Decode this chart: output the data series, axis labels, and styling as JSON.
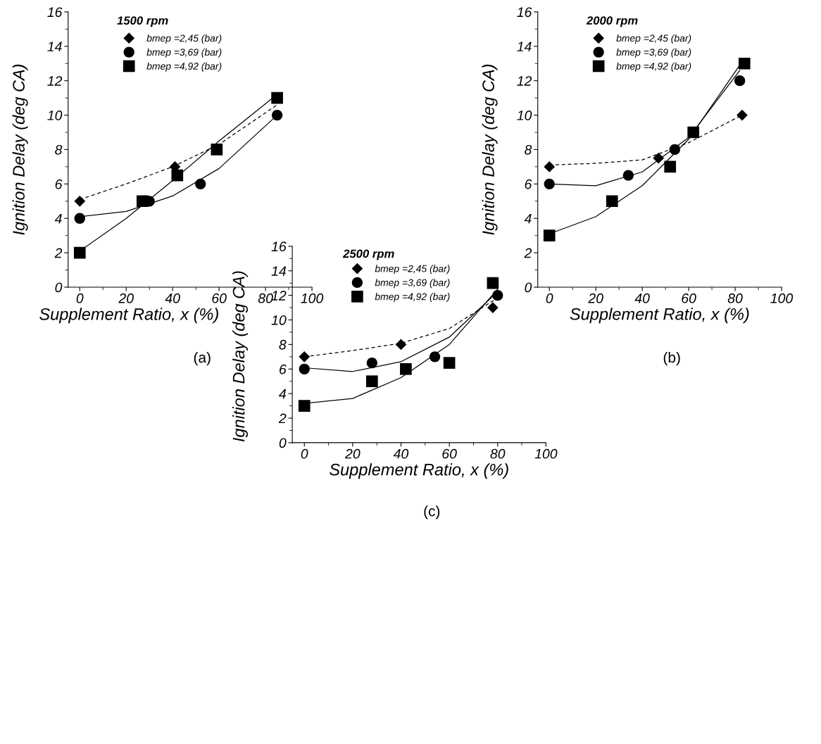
{
  "chart_data": [
    {
      "type": "scatter",
      "title": "1500 rpm",
      "xlabel": "Supplement Ratio, x (%)",
      "ylabel": "Ignition Delay (deg CA)",
      "annotations": [
        "(a)"
      ],
      "xlim": [
        -5,
        100
      ],
      "xticks": [
        0,
        20,
        40,
        60,
        80,
        100
      ],
      "ylim": [
        0,
        16
      ],
      "yticks": [
        0,
        2,
        4,
        6,
        8,
        10,
        12,
        14,
        16
      ],
      "grid": false,
      "legend": "top",
      "series": [
        {
          "name": "bmep =2,45 (bar)",
          "color": "#000000",
          "marker": "diamond",
          "line_style": "dashed",
          "x": [
            0,
            41
          ],
          "values": [
            5,
            7
          ]
        },
        {
          "name": "bmep =3,69 (bar)",
          "color": "#000000",
          "marker": "circle",
          "line_style": "solid",
          "x": [
            0,
            30,
            52,
            85
          ],
          "values": [
            4,
            5,
            6,
            10
          ]
        },
        {
          "name": "bmep =4,92 (bar)",
          "color": "#000000",
          "marker": "square",
          "line_style": "solid",
          "x": [
            0,
            27,
            42,
            59,
            85
          ],
          "values": [
            2,
            5,
            6.5,
            8,
            11
          ]
        },
        {
          "type": "line",
          "color": "#000000",
          "line_style": "dashed",
          "x": [
            0,
            20,
            40,
            60,
            85
          ],
          "values": [
            5.1,
            6.0,
            7.0,
            8.3,
            10.6
          ]
        },
        {
          "type": "line",
          "color": "#000000",
          "line_style": "solid",
          "x": [
            0,
            20,
            40,
            60,
            85
          ],
          "values": [
            4.1,
            4.4,
            5.3,
            6.9,
            10.0
          ]
        },
        {
          "type": "line",
          "color": "#000000",
          "line_style": "solid",
          "x": [
            0,
            20,
            40,
            60,
            85
          ],
          "values": [
            2.1,
            4.0,
            6.2,
            8.5,
            11.2
          ]
        }
      ]
    },
    {
      "type": "scatter",
      "title": "2000 rpm",
      "xlabel": "Supplement Ratio, x (%)",
      "ylabel": "Ignition Delay (deg CA)",
      "annotations": [
        "(b)"
      ],
      "xlim": [
        -5,
        100
      ],
      "xticks": [
        0,
        20,
        40,
        60,
        80,
        100
      ],
      "ylim": [
        0,
        16
      ],
      "yticks": [
        0,
        2,
        4,
        6,
        8,
        10,
        12,
        14,
        16
      ],
      "grid": false,
      "legend": "top",
      "series": [
        {
          "name": "bmep =2,45 (bar)",
          "color": "#000000",
          "marker": "diamond",
          "line_style": "dashed",
          "x": [
            0,
            47,
            83
          ],
          "values": [
            7,
            7.5,
            10
          ]
        },
        {
          "name": "bmep =3,69 (bar)",
          "color": "#000000",
          "marker": "circle",
          "line_style": "solid",
          "x": [
            0,
            34,
            54,
            82
          ],
          "values": [
            6,
            6.5,
            8,
            12
          ]
        },
        {
          "name": "bmep =4,92 (bar)",
          "color": "#000000",
          "marker": "square",
          "line_style": "solid",
          "x": [
            0,
            27,
            52,
            62,
            84
          ],
          "values": [
            3,
            5,
            7,
            9,
            13
          ]
        },
        {
          "type": "line",
          "color": "#000000",
          "line_style": "dashed",
          "x": [
            0,
            20,
            40,
            60,
            83
          ],
          "values": [
            7.1,
            7.2,
            7.4,
            8.4,
            10.0
          ]
        },
        {
          "type": "line",
          "color": "#000000",
          "line_style": "solid",
          "x": [
            0,
            20,
            40,
            60,
            82
          ],
          "values": [
            6.0,
            5.9,
            6.7,
            8.7,
            12.6
          ]
        },
        {
          "type": "line",
          "color": "#000000",
          "line_style": "solid",
          "x": [
            0,
            20,
            40,
            60,
            84
          ],
          "values": [
            3.1,
            4.1,
            5.9,
            8.6,
            13.3
          ]
        }
      ]
    },
    {
      "type": "scatter",
      "title": "2500 rpm",
      "xlabel": "Supplement Ratio, x (%)",
      "ylabel": "Ignition Delay (deg CA)",
      "annotations": [
        "(c)"
      ],
      "xlim": [
        -5,
        100
      ],
      "xticks": [
        0,
        20,
        40,
        60,
        80,
        100
      ],
      "ylim": [
        0,
        16
      ],
      "yticks": [
        0,
        2,
        4,
        6,
        8,
        10,
        12,
        14,
        16
      ],
      "grid": false,
      "legend": "top",
      "series": [
        {
          "name": "bmep =2,45 (bar)",
          "color": "#000000",
          "marker": "diamond",
          "line_style": "dashed",
          "x": [
            0,
            40,
            78
          ],
          "values": [
            7,
            8,
            11
          ]
        },
        {
          "name": "bmep =3,69 (bar)",
          "color": "#000000",
          "marker": "circle",
          "line_style": "solid",
          "x": [
            0,
            28,
            54,
            80
          ],
          "values": [
            6,
            6.5,
            7,
            12
          ]
        },
        {
          "name": "bmep =4,92 (bar)",
          "color": "#000000",
          "marker": "square",
          "line_style": "solid",
          "x": [
            0,
            28,
            42,
            60,
            78
          ],
          "values": [
            3,
            5,
            6,
            6.5,
            13
          ]
        },
        {
          "type": "line",
          "color": "#000000",
          "line_style": "dashed",
          "x": [
            0,
            20,
            40,
            60,
            80
          ],
          "values": [
            7.0,
            7.5,
            8.1,
            9.3,
            11.8
          ]
        },
        {
          "type": "line",
          "color": "#000000",
          "line_style": "solid",
          "x": [
            0,
            20,
            40,
            60,
            80
          ],
          "values": [
            6.1,
            5.8,
            6.6,
            8.6,
            12.3
          ]
        },
        {
          "type": "line",
          "color": "#000000",
          "line_style": "solid",
          "x": [
            0,
            20,
            40,
            60,
            80
          ],
          "values": [
            3.2,
            3.6,
            5.3,
            8.0,
            12.5
          ]
        }
      ]
    }
  ]
}
